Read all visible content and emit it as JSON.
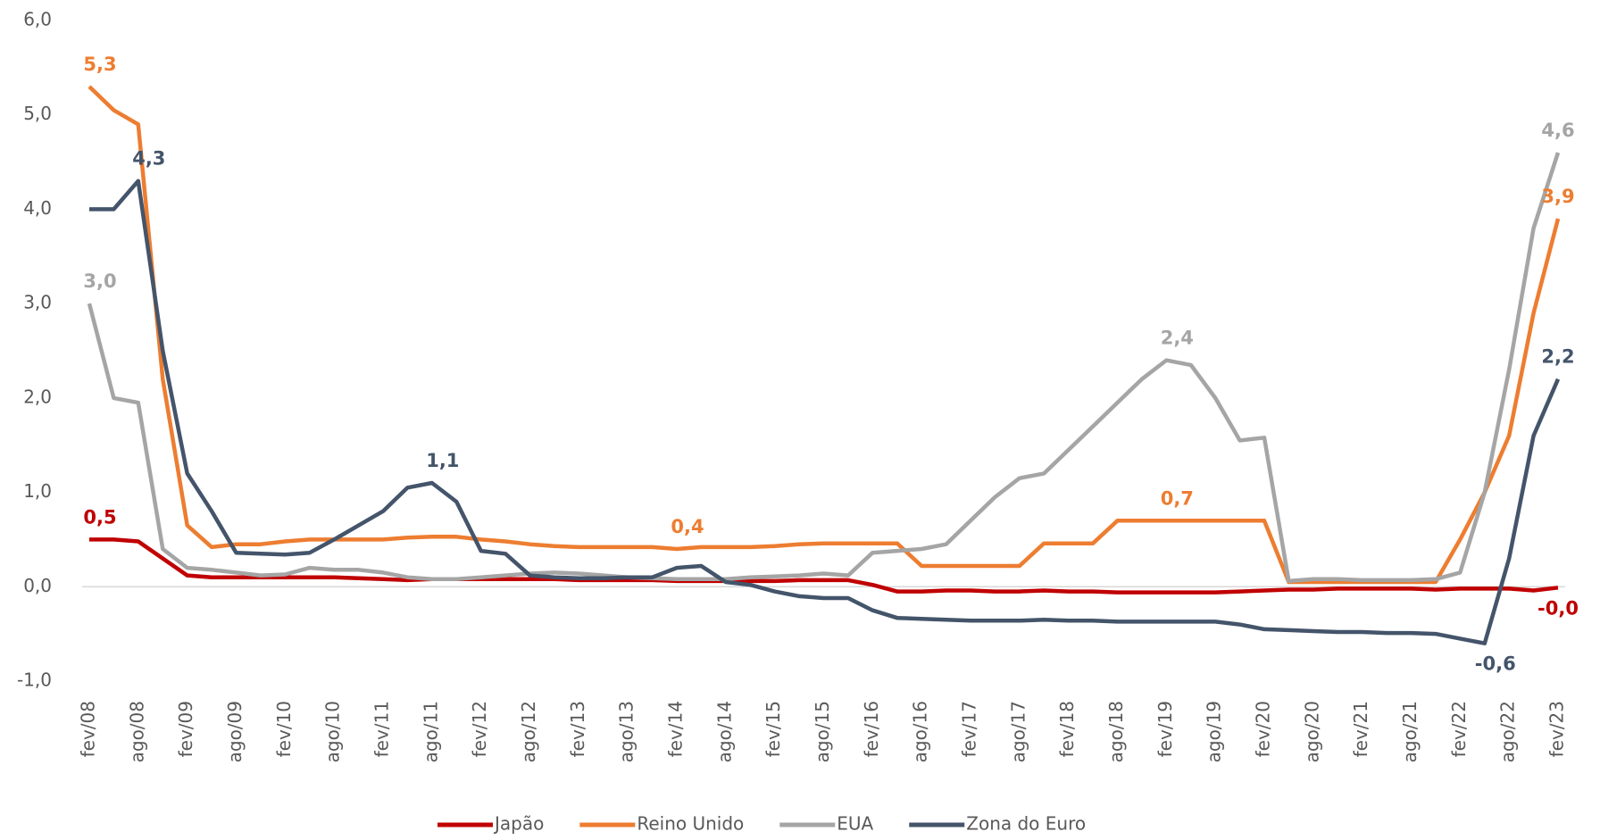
{
  "chart_data": {
    "type": "line",
    "categories": [
      "fev/08",
      null,
      "ago/08",
      null,
      "fev/09",
      null,
      "ago/09",
      null,
      "fev/10",
      null,
      "ago/10",
      null,
      "fev/11",
      null,
      "ago/11",
      null,
      "fev/12",
      null,
      "ago/12",
      null,
      "fev/13",
      null,
      "ago/13",
      null,
      "fev/14",
      null,
      "ago/14",
      null,
      "fev/15",
      null,
      "ago/15",
      null,
      "fev/16",
      null,
      "ago/16",
      null,
      "fev/17",
      null,
      "ago/17",
      null,
      "fev/18",
      null,
      "ago/18",
      null,
      "fev/19",
      null,
      "ago/19",
      null,
      "fev/20",
      null,
      "ago/20",
      null,
      "fev/21",
      null,
      "ago/21",
      null,
      "fev/22",
      null,
      "ago/22",
      null,
      "fev/23"
    ],
    "series": [
      {
        "name": "Japão",
        "color": "#c00000",
        "values": [
          0.5,
          0.5,
          0.48,
          0.3,
          0.12,
          0.1,
          0.1,
          0.1,
          0.1,
          0.1,
          0.1,
          0.09,
          0.08,
          0.07,
          0.08,
          0.08,
          0.08,
          0.08,
          0.08,
          0.08,
          0.07,
          0.07,
          0.07,
          0.07,
          0.06,
          0.06,
          0.06,
          0.06,
          0.06,
          0.07,
          0.07,
          0.07,
          0.02,
          -0.05,
          -0.05,
          -0.04,
          -0.04,
          -0.05,
          -0.05,
          -0.04,
          -0.05,
          -0.05,
          -0.06,
          -0.06,
          -0.06,
          -0.06,
          -0.06,
          -0.05,
          -0.04,
          -0.03,
          -0.03,
          -0.02,
          -0.02,
          -0.02,
          -0.02,
          -0.03,
          -0.02,
          -0.02,
          -0.02,
          -0.04,
          -0.01
        ],
        "value_labels": [
          "0,5",
          null,
          null,
          null,
          null,
          null,
          null,
          null,
          null,
          null,
          null,
          null,
          null,
          null,
          null,
          null,
          null,
          null,
          null,
          null,
          null,
          null,
          null,
          null,
          null,
          null,
          null,
          null,
          null,
          null,
          null,
          null,
          null,
          null,
          null,
          null,
          null,
          null,
          null,
          null,
          null,
          null,
          null,
          null,
          null,
          null,
          null,
          null,
          null,
          null,
          null,
          null,
          null,
          null,
          null,
          null,
          null,
          null,
          null,
          null,
          "-0,0"
        ]
      },
      {
        "name": "Reino Unido",
        "color": "#ed7d31",
        "values": [
          5.3,
          5.05,
          4.9,
          2.2,
          0.65,
          0.42,
          0.45,
          0.45,
          0.48,
          0.5,
          0.5,
          0.5,
          0.5,
          0.52,
          0.53,
          0.53,
          0.5,
          0.48,
          0.45,
          0.43,
          0.42,
          0.42,
          0.42,
          0.42,
          0.4,
          0.42,
          0.42,
          0.42,
          0.43,
          0.45,
          0.46,
          0.46,
          0.46,
          0.46,
          0.22,
          0.22,
          0.22,
          0.22,
          0.22,
          0.46,
          0.46,
          0.46,
          0.7,
          0.7,
          0.7,
          0.7,
          0.7,
          0.7,
          0.7,
          0.05,
          0.05,
          0.05,
          0.05,
          0.05,
          0.05,
          0.05,
          0.5,
          1.0,
          1.6,
          2.9,
          3.9
        ],
        "value_labels": [
          "5,3",
          null,
          null,
          null,
          null,
          null,
          null,
          null,
          null,
          null,
          null,
          null,
          null,
          null,
          null,
          null,
          null,
          null,
          null,
          null,
          null,
          null,
          null,
          null,
          "0,4",
          null,
          null,
          null,
          null,
          null,
          null,
          null,
          null,
          null,
          null,
          null,
          null,
          null,
          null,
          null,
          null,
          null,
          null,
          null,
          "0,7",
          null,
          null,
          null,
          null,
          null,
          null,
          null,
          null,
          null,
          null,
          null,
          null,
          null,
          null,
          null,
          "3,9"
        ]
      },
      {
        "name": "EUA",
        "color": "#a5a5a5",
        "values": [
          3.0,
          2.0,
          1.95,
          0.4,
          0.2,
          0.18,
          0.15,
          0.12,
          0.13,
          0.2,
          0.18,
          0.18,
          0.15,
          0.1,
          0.08,
          0.08,
          0.1,
          0.12,
          0.14,
          0.15,
          0.14,
          0.12,
          0.1,
          0.09,
          0.08,
          0.08,
          0.08,
          0.1,
          0.11,
          0.12,
          0.14,
          0.12,
          0.36,
          0.38,
          0.4,
          0.45,
          0.7,
          0.95,
          1.15,
          1.2,
          1.45,
          1.7,
          1.95,
          2.2,
          2.4,
          2.35,
          2.0,
          1.55,
          1.58,
          0.06,
          0.08,
          0.08,
          0.07,
          0.07,
          0.07,
          0.08,
          0.15,
          1.0,
          2.3,
          3.8,
          4.6
        ],
        "value_labels": [
          "3,0",
          null,
          null,
          null,
          null,
          null,
          null,
          null,
          null,
          null,
          null,
          null,
          null,
          null,
          null,
          null,
          null,
          null,
          null,
          null,
          null,
          null,
          null,
          null,
          null,
          null,
          null,
          null,
          null,
          null,
          null,
          null,
          null,
          null,
          null,
          null,
          null,
          null,
          null,
          null,
          null,
          null,
          null,
          null,
          "2,4",
          null,
          null,
          null,
          null,
          null,
          null,
          null,
          null,
          null,
          null,
          null,
          null,
          null,
          null,
          null,
          "4,6"
        ]
      },
      {
        "name": "Zona do Euro",
        "color": "#44546a",
        "values": [
          4.0,
          4.0,
          4.3,
          2.5,
          1.2,
          0.8,
          0.36,
          0.35,
          0.34,
          0.36,
          0.5,
          0.65,
          0.8,
          1.05,
          1.1,
          0.9,
          0.38,
          0.35,
          0.12,
          0.1,
          0.09,
          0.09,
          0.1,
          0.1,
          0.2,
          0.22,
          0.05,
          0.02,
          -0.05,
          -0.1,
          -0.12,
          -0.12,
          -0.25,
          -0.33,
          -0.34,
          -0.35,
          -0.36,
          -0.36,
          -0.36,
          -0.35,
          -0.36,
          -0.36,
          -0.37,
          -0.37,
          -0.37,
          -0.37,
          -0.37,
          -0.4,
          -0.45,
          -0.46,
          -0.47,
          -0.48,
          -0.48,
          -0.49,
          -0.49,
          -0.5,
          -0.55,
          -0.6,
          0.3,
          1.6,
          2.2
        ],
        "value_labels": [
          null,
          null,
          "4,3",
          null,
          null,
          null,
          null,
          null,
          null,
          null,
          null,
          null,
          null,
          null,
          "1,1",
          null,
          null,
          null,
          null,
          null,
          null,
          null,
          null,
          null,
          null,
          null,
          null,
          null,
          null,
          null,
          null,
          null,
          null,
          null,
          null,
          null,
          null,
          null,
          null,
          null,
          null,
          null,
          null,
          null,
          null,
          null,
          null,
          null,
          null,
          null,
          null,
          null,
          null,
          null,
          null,
          null,
          null,
          "-0,6",
          null,
          null,
          "2,2"
        ]
      }
    ],
    "ylim": [
      -1,
      6
    ],
    "yticks": [
      {
        "value": -1,
        "label": "-1,0"
      },
      {
        "value": 0,
        "label": "0,0"
      },
      {
        "value": 1,
        "label": "1,0"
      },
      {
        "value": 2,
        "label": "2,0"
      },
      {
        "value": 3,
        "label": "3,0"
      },
      {
        "value": 4,
        "label": "4,0"
      },
      {
        "value": 5,
        "label": "5,0"
      },
      {
        "value": 6,
        "label": "6,0"
      }
    ],
    "grid": false,
    "legend": "bottom"
  }
}
